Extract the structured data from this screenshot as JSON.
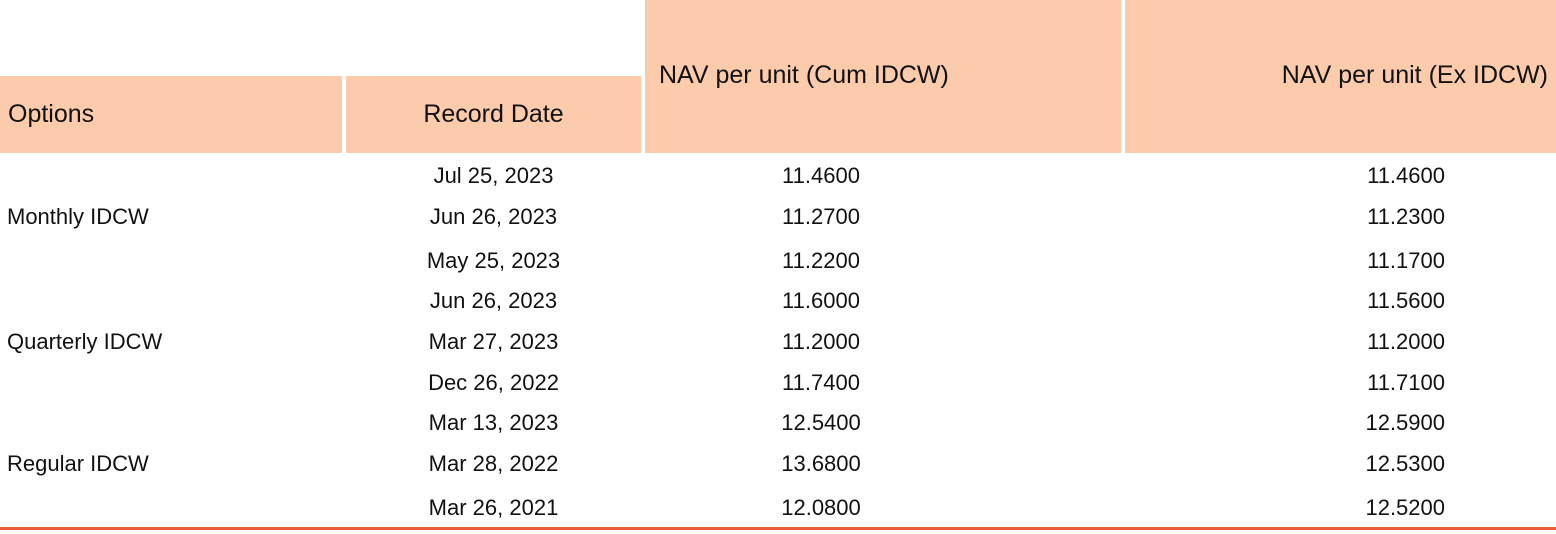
{
  "table": {
    "headers": {
      "options": "Options",
      "record_date": "Record Date",
      "nav_cum": "NAV per unit (Cum IDCW)",
      "nav_ex": "NAV per unit (Ex IDCW)"
    },
    "option_labels": [
      "Monthly IDCW",
      "Quarterly IDCW",
      "Regular IDCW"
    ],
    "rows": [
      {
        "date": "Jul 25, 2023",
        "cum": "11.4600",
        "ex": "11.4600"
      },
      {
        "date": "Jun 26, 2023",
        "cum": "11.2700",
        "ex": "11.2300"
      },
      {
        "date": "May 25, 2023",
        "cum": "11.2200",
        "ex": "11.1700"
      },
      {
        "date": "Jun 26, 2023",
        "cum": "11.6000",
        "ex": "11.5600"
      },
      {
        "date": "Mar 27, 2023",
        "cum": "11.2000",
        "ex": "11.2000"
      },
      {
        "date": "Dec 26, 2022",
        "cum": "11.7400",
        "ex": "11.7100"
      },
      {
        "date": "Mar 13, 2023",
        "cum": "12.5400",
        "ex": "12.5900"
      },
      {
        "date": "Mar 28, 2022",
        "cum": "13.6800",
        "ex": "12.5300"
      },
      {
        "date": "Mar 26, 2021",
        "cum": "12.0800",
        "ex": "12.5200"
      }
    ]
  },
  "colors": {
    "header_bg": "#fccbab",
    "rule": "#e8603c"
  }
}
